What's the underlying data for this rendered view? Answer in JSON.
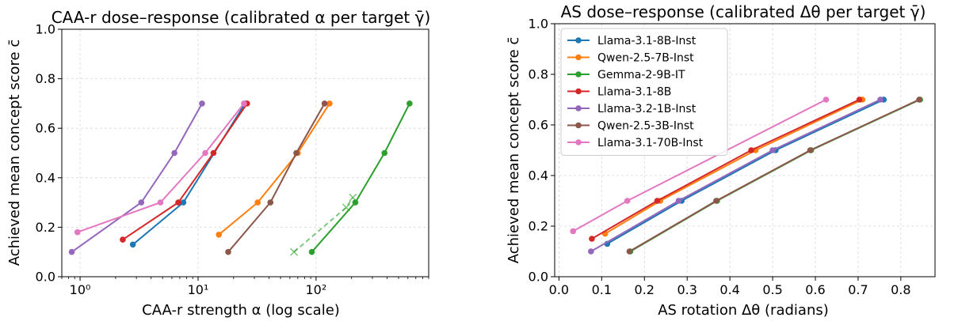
{
  "chart_data": [
    {
      "type": "line",
      "title": "CAA-r dose–response (calibrated α per target γ̄)",
      "xlabel": "CAA-r strength α (log scale)",
      "ylabel": "Achieved mean concept score c̄",
      "xscale": "log",
      "xlim": [
        0.7,
        900
      ],
      "ylim": [
        0,
        1
      ],
      "xticks": [
        1,
        10,
        100
      ],
      "xtick_labels": [
        "10⁰",
        "10¹",
        "10²"
      ],
      "yticks": [
        0,
        0.2,
        0.4,
        0.6,
        0.8,
        1.0
      ],
      "ytick_labels": [
        "0.0",
        "0.2",
        "0.4",
        "0.6",
        "0.8",
        "1.0"
      ],
      "grid": true,
      "series": [
        {
          "name": "Llama-3.1-8B-Inst",
          "color": "#1f77b4",
          "x": [
            2.8,
            7.5,
            25
          ],
          "y": [
            0.13,
            0.3,
            0.7
          ]
        },
        {
          "name": "Qwen-2.5-7B-Inst",
          "color": "#ff7f0e",
          "x": [
            15,
            32,
            70,
            130
          ],
          "y": [
            0.17,
            0.3,
            0.5,
            0.7
          ]
        },
        {
          "name": "Gemma-2-9B-IT",
          "color": "#2ca02c",
          "x": [
            92,
            215,
            380,
            620
          ],
          "y": [
            0.1,
            0.3,
            0.5,
            0.7
          ]
        },
        {
          "name": "Llama-3.1-8B",
          "color": "#d62728",
          "x": [
            2.3,
            6.8,
            13.5,
            26
          ],
          "y": [
            0.15,
            0.3,
            0.5,
            0.7
          ]
        },
        {
          "name": "Llama-3.2-1B-Inst",
          "color": "#9467bd",
          "x": [
            0.85,
            3.3,
            6.3,
            10.8
          ],
          "y": [
            0.1,
            0.3,
            0.5,
            0.7
          ]
        },
        {
          "name": "Qwen-2.5-3B-Inst",
          "color": "#8c564b",
          "x": [
            18,
            41,
            68,
            118
          ],
          "y": [
            0.1,
            0.3,
            0.5,
            0.7
          ]
        },
        {
          "name": "Llama-3.1-70B-Inst",
          "color": "#e377c2",
          "x": [
            0.95,
            4.8,
            11.5,
            24.5
          ],
          "y": [
            0.18,
            0.3,
            0.5,
            0.7
          ]
        },
        {
          "name": "",
          "color": "#2ca02c",
          "style": "dashed",
          "marker": "x",
          "alpha": 0.6,
          "x": [
            65,
            180,
            205
          ],
          "y": [
            0.1,
            0.28,
            0.32
          ]
        }
      ]
    },
    {
      "type": "line",
      "title": "AS dose–response (calibrated Δθ per target γ̄)",
      "xlabel": "AS rotation Δθ (radians)",
      "ylabel": "Achieved mean concept score c̄",
      "xscale": "linear",
      "xlim": [
        -0.01,
        0.88
      ],
      "ylim": [
        0,
        1
      ],
      "xticks": [
        0,
        0.1,
        0.2,
        0.3,
        0.4,
        0.5,
        0.6,
        0.7,
        0.8
      ],
      "xtick_labels": [
        "0.0",
        "0.1",
        "0.2",
        "0.3",
        "0.4",
        "0.5",
        "0.6",
        "0.7",
        "0.8"
      ],
      "yticks": [
        0,
        0.2,
        0.4,
        0.6,
        0.8,
        1.0
      ],
      "ytick_labels": [
        "0.0",
        "0.2",
        "0.4",
        "0.6",
        "0.8",
        "1.0"
      ],
      "grid": true,
      "legend": "top-left",
      "series": [
        {
          "name": "Llama-3.1-8B-Inst",
          "color": "#1f77b4",
          "x": [
            0.113,
            0.287,
            0.507,
            0.76
          ],
          "y": [
            0.13,
            0.3,
            0.5,
            0.7
          ]
        },
        {
          "name": "Qwen-2.5-7B-Inst",
          "color": "#ff7f0e",
          "x": [
            0.108,
            0.237,
            0.46,
            0.71
          ],
          "y": [
            0.17,
            0.3,
            0.5,
            0.7
          ]
        },
        {
          "name": "Gemma-2-9B-IT",
          "color": "#2ca02c",
          "x": [
            0.167,
            0.37,
            0.59,
            0.845
          ],
          "y": [
            0.1,
            0.3,
            0.5,
            0.7
          ]
        },
        {
          "name": "Llama-3.1-8B",
          "color": "#d62728",
          "x": [
            0.077,
            0.23,
            0.45,
            0.703
          ],
          "y": [
            0.15,
            0.3,
            0.5,
            0.7
          ]
        },
        {
          "name": "Llama-3.2-1B-Inst",
          "color": "#9467bd",
          "x": [
            0.075,
            0.28,
            0.5,
            0.752
          ],
          "y": [
            0.1,
            0.3,
            0.5,
            0.7
          ]
        },
        {
          "name": "Qwen-2.5-3B-Inst",
          "color": "#8c564b",
          "x": [
            0.165,
            0.368,
            0.588,
            0.843
          ],
          "y": [
            0.1,
            0.3,
            0.5,
            0.7
          ]
        },
        {
          "name": "Llama-3.1-70B-Inst",
          "color": "#e377c2",
          "x": [
            0.033,
            0.16,
            0.625
          ],
          "y": [
            0.18,
            0.3,
            0.7
          ]
        }
      ]
    }
  ]
}
